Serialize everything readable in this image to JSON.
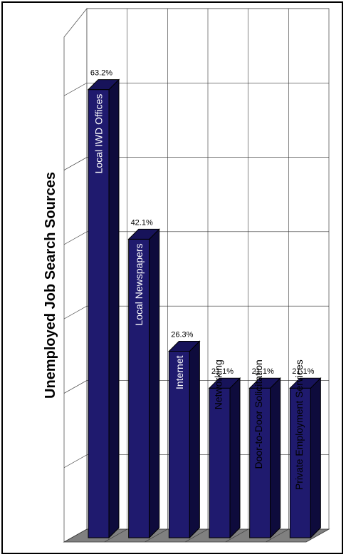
{
  "chart_data": {
    "type": "bar",
    "title": "Unemployed Job Search Sources",
    "categories": [
      "Local IWD Offices",
      "Local Newspapers",
      "Internet",
      "Networking",
      "Door-to-Door Solicitation",
      "Private Employment Services"
    ],
    "values": [
      63.2,
      42.1,
      26.3,
      21.1,
      21.1,
      21.1
    ],
    "value_labels": [
      "63.2%",
      "42.1%",
      "26.3%",
      "21.1%",
      "21.1%",
      "21.1%"
    ],
    "ylim": [
      0,
      70
    ],
    "grid": true,
    "style": "3d",
    "bar_color": "#1f1a6e",
    "legend": "none"
  }
}
